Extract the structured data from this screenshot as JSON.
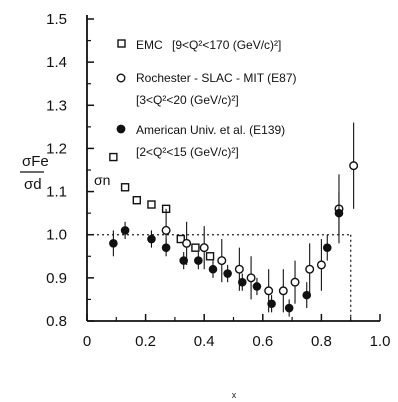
{
  "chart_data": {
    "type": "scatter",
    "ylabel_num": "σFe",
    "ylabel_den": "σd",
    "xlabel": "x",
    "xlim": [
      0,
      1.0
    ],
    "ylim": [
      0.8,
      1.5
    ],
    "x_tick_labels": [
      "0",
      "0.2",
      "0.4",
      "0.6",
      "0.8",
      "1.0"
    ],
    "y_tick_labels": [
      "0.8",
      "0.9",
      "1.0",
      "1.1",
      "1.2",
      "1.3",
      "1.4",
      "1.5"
    ],
    "reference_line": {
      "y": 1.0,
      "style": "dotted"
    },
    "annotation": "σn",
    "legend": {
      "placement": "top-right",
      "entries": [
        {
          "marker": "open-square",
          "label": "EMC",
          "range": "[9<Q²<170 (GeV/c)²]"
        },
        {
          "marker": "open-circle",
          "label": "Rochester - SLAC - MIT (E87)",
          "range": "[3<Q²<20 (GeV/c)²]"
        },
        {
          "marker": "filled-circle",
          "label": "American Univ. et al. (E139)",
          "range": "[2<Q²<15 (GeV/c)²]"
        }
      ]
    },
    "series": [
      {
        "name": "EMC",
        "marker": "open-square",
        "points": [
          {
            "x": 0.09,
            "y": 1.18
          },
          {
            "x": 0.13,
            "y": 1.11
          },
          {
            "x": 0.17,
            "y": 1.08
          },
          {
            "x": 0.22,
            "y": 1.07
          },
          {
            "x": 0.27,
            "y": 1.06
          },
          {
            "x": 0.32,
            "y": 0.99
          },
          {
            "x": 0.37,
            "y": 0.97
          },
          {
            "x": 0.42,
            "y": 0.95
          }
        ]
      },
      {
        "name": "Rochester - SLAC - MIT (E87)",
        "marker": "open-circle",
        "points": [
          {
            "x": 0.27,
            "y": 1.01,
            "err": 0.05
          },
          {
            "x": 0.34,
            "y": 0.98,
            "err": 0.05
          },
          {
            "x": 0.4,
            "y": 0.97,
            "err": 0.05
          },
          {
            "x": 0.46,
            "y": 0.94,
            "err": 0.05
          },
          {
            "x": 0.52,
            "y": 0.92,
            "err": 0.05
          },
          {
            "x": 0.56,
            "y": 0.9,
            "err": 0.05
          },
          {
            "x": 0.62,
            "y": 0.87,
            "err": 0.05
          },
          {
            "x": 0.67,
            "y": 0.87,
            "err": 0.05
          },
          {
            "x": 0.71,
            "y": 0.89,
            "err": 0.05
          },
          {
            "x": 0.76,
            "y": 0.92,
            "err": 0.06
          },
          {
            "x": 0.8,
            "y": 0.93,
            "err": 0.06
          },
          {
            "x": 0.86,
            "y": 1.06,
            "err": 0.08
          },
          {
            "x": 0.91,
            "y": 1.16,
            "err": 0.1
          }
        ]
      },
      {
        "name": "American Univ. et al. (E139)",
        "marker": "filled-circle",
        "points": [
          {
            "x": 0.09,
            "y": 0.98,
            "err": 0.03
          },
          {
            "x": 0.13,
            "y": 1.01,
            "err": 0.02
          },
          {
            "x": 0.22,
            "y": 0.99,
            "err": 0.02
          },
          {
            "x": 0.27,
            "y": 0.97,
            "err": 0.02
          },
          {
            "x": 0.33,
            "y": 0.94,
            "err": 0.02
          },
          {
            "x": 0.38,
            "y": 0.94,
            "err": 0.02
          },
          {
            "x": 0.43,
            "y": 0.92,
            "err": 0.02
          },
          {
            "x": 0.48,
            "y": 0.91,
            "err": 0.02
          },
          {
            "x": 0.53,
            "y": 0.89,
            "err": 0.02
          },
          {
            "x": 0.58,
            "y": 0.88,
            "err": 0.02
          },
          {
            "x": 0.63,
            "y": 0.84,
            "err": 0.02
          },
          {
            "x": 0.69,
            "y": 0.83,
            "err": 0.02
          },
          {
            "x": 0.75,
            "y": 0.86,
            "err": 0.03
          },
          {
            "x": 0.82,
            "y": 0.97,
            "err": 0.03
          },
          {
            "x": 0.86,
            "y": 1.05,
            "err": 0.05
          }
        ]
      }
    ]
  }
}
